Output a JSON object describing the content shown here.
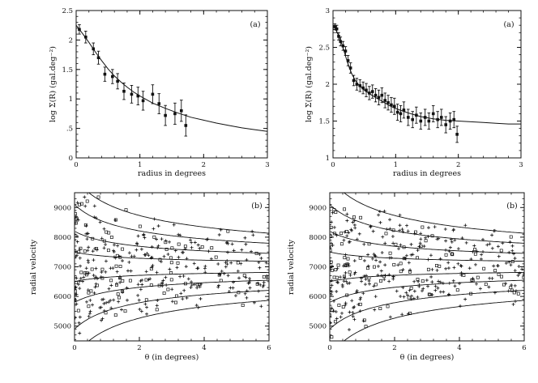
{
  "chart_data": [
    {
      "id": "top-left",
      "type": "scatter",
      "panel_label": "(a)",
      "xlabel": "radius in degrees",
      "ylabel": "log Σ(R) (gal.deg⁻²)",
      "xlim": [
        0,
        3
      ],
      "ylim": [
        0,
        2.5
      ],
      "xticks": [
        0,
        1,
        2,
        3
      ],
      "xtick_labels": [
        "0",
        "1",
        "2",
        "3"
      ],
      "yticks": [
        0,
        0.5,
        1,
        1.5,
        2,
        2.5
      ],
      "ytick_labels": [
        "0",
        ".5",
        "1",
        "1.5",
        "2",
        "2.5"
      ],
      "points": [
        {
          "x": 0.05,
          "y": 2.18,
          "err": 0.08
        },
        {
          "x": 0.15,
          "y": 2.05,
          "err": 0.1
        },
        {
          "x": 0.27,
          "y": 1.85,
          "err": 0.1
        },
        {
          "x": 0.35,
          "y": 1.7,
          "err": 0.11
        },
        {
          "x": 0.45,
          "y": 1.42,
          "err": 0.12
        },
        {
          "x": 0.57,
          "y": 1.38,
          "err": 0.12
        },
        {
          "x": 0.65,
          "y": 1.3,
          "err": 0.13
        },
        {
          "x": 0.75,
          "y": 1.13,
          "err": 0.14
        },
        {
          "x": 0.87,
          "y": 1.08,
          "err": 0.15
        },
        {
          "x": 0.97,
          "y": 1.05,
          "err": 0.15
        },
        {
          "x": 1.05,
          "y": 0.97,
          "err": 0.16
        },
        {
          "x": 1.2,
          "y": 1.08,
          "err": 0.16
        },
        {
          "x": 1.3,
          "y": 0.92,
          "err": 0.17
        },
        {
          "x": 1.4,
          "y": 0.72,
          "err": 0.17
        },
        {
          "x": 1.55,
          "y": 0.75,
          "err": 0.18
        },
        {
          "x": 1.65,
          "y": 0.8,
          "err": 0.18
        },
        {
          "x": 1.72,
          "y": 0.55,
          "err": 0.18
        }
      ],
      "fit_curve": {
        "x": [
          0.0,
          0.1,
          0.2,
          0.3,
          0.4,
          0.5,
          0.6,
          0.7,
          0.8,
          0.9,
          1.0,
          1.2,
          1.4,
          1.6,
          1.8,
          2.0,
          2.2,
          2.4,
          2.6,
          2.8,
          3.0
        ],
        "y": [
          2.25,
          2.11,
          1.96,
          1.8,
          1.65,
          1.51,
          1.39,
          1.29,
          1.2,
          1.12,
          1.05,
          0.93,
          0.84,
          0.76,
          0.69,
          0.64,
          0.59,
          0.55,
          0.51,
          0.48,
          0.45
        ]
      }
    },
    {
      "id": "top-right",
      "type": "scatter",
      "panel_label": "(a)",
      "xlabel": "radius in degrees",
      "ylabel": "log Σ(R) (gal.deg⁻²)",
      "xlim": [
        0,
        3
      ],
      "ylim": [
        1,
        3
      ],
      "xticks": [
        0,
        1,
        2,
        3
      ],
      "xtick_labels": [
        "0",
        "1",
        "2",
        "3"
      ],
      "yticks": [
        1,
        1.5,
        2,
        2.5,
        3
      ],
      "ytick_labels": [
        "1",
        "1.5",
        "2",
        "2.5",
        "3"
      ],
      "points": [
        {
          "x": 0.03,
          "y": 2.78,
          "err": 0.04
        },
        {
          "x": 0.06,
          "y": 2.75,
          "err": 0.05
        },
        {
          "x": 0.09,
          "y": 2.65,
          "err": 0.05
        },
        {
          "x": 0.12,
          "y": 2.58,
          "err": 0.06
        },
        {
          "x": 0.16,
          "y": 2.52,
          "err": 0.06
        },
        {
          "x": 0.2,
          "y": 2.45,
          "err": 0.06
        },
        {
          "x": 0.24,
          "y": 2.32,
          "err": 0.07
        },
        {
          "x": 0.28,
          "y": 2.22,
          "err": 0.07
        },
        {
          "x": 0.33,
          "y": 2.05,
          "err": 0.07
        },
        {
          "x": 0.38,
          "y": 2.0,
          "err": 0.08
        },
        {
          "x": 0.43,
          "y": 1.98,
          "err": 0.08
        },
        {
          "x": 0.48,
          "y": 1.95,
          "err": 0.08
        },
        {
          "x": 0.53,
          "y": 1.92,
          "err": 0.09
        },
        {
          "x": 0.58,
          "y": 1.88,
          "err": 0.09
        },
        {
          "x": 0.63,
          "y": 1.9,
          "err": 0.09
        },
        {
          "x": 0.68,
          "y": 1.85,
          "err": 0.09
        },
        {
          "x": 0.73,
          "y": 1.82,
          "err": 0.1
        },
        {
          "x": 0.78,
          "y": 1.85,
          "err": 0.1
        },
        {
          "x": 0.83,
          "y": 1.78,
          "err": 0.1
        },
        {
          "x": 0.88,
          "y": 1.75,
          "err": 0.1
        },
        {
          "x": 0.93,
          "y": 1.72,
          "err": 0.1
        },
        {
          "x": 0.98,
          "y": 1.7,
          "err": 0.11
        },
        {
          "x": 1.03,
          "y": 1.62,
          "err": 0.11
        },
        {
          "x": 1.08,
          "y": 1.6,
          "err": 0.11
        },
        {
          "x": 1.13,
          "y": 1.65,
          "err": 0.11
        },
        {
          "x": 1.2,
          "y": 1.55,
          "err": 0.11
        },
        {
          "x": 1.27,
          "y": 1.52,
          "err": 0.11
        },
        {
          "x": 1.33,
          "y": 1.58,
          "err": 0.11
        },
        {
          "x": 1.4,
          "y": 1.5,
          "err": 0.11
        },
        {
          "x": 1.47,
          "y": 1.55,
          "err": 0.11
        },
        {
          "x": 1.53,
          "y": 1.5,
          "err": 0.11
        },
        {
          "x": 1.6,
          "y": 1.6,
          "err": 0.11
        },
        {
          "x": 1.67,
          "y": 1.52,
          "err": 0.11
        },
        {
          "x": 1.73,
          "y": 1.55,
          "err": 0.11
        },
        {
          "x": 1.8,
          "y": 1.45,
          "err": 0.11
        },
        {
          "x": 1.87,
          "y": 1.5,
          "err": 0.11
        },
        {
          "x": 1.93,
          "y": 1.52,
          "err": 0.11
        },
        {
          "x": 1.98,
          "y": 1.32,
          "err": 0.11
        }
      ],
      "fit_curve": {
        "x": [
          0.0,
          0.05,
          0.1,
          0.15,
          0.2,
          0.25,
          0.3,
          0.35,
          0.4,
          0.5,
          0.6,
          0.7,
          0.8,
          0.9,
          1.0,
          1.2,
          1.4,
          1.6,
          1.8,
          2.0,
          2.2,
          2.4,
          2.6,
          2.8,
          3.0
        ],
        "y": [
          2.75,
          2.73,
          2.64,
          2.52,
          2.38,
          2.25,
          2.14,
          2.06,
          2.0,
          1.92,
          1.86,
          1.81,
          1.76,
          1.71,
          1.67,
          1.61,
          1.56,
          1.53,
          1.51,
          1.5,
          1.49,
          1.48,
          1.47,
          1.46,
          1.46
        ]
      }
    },
    {
      "id": "bottom-left",
      "type": "scatter",
      "panel_label": "(b)",
      "xlabel": "θ (in degrees)",
      "ylabel": "radial velocity",
      "xlim": [
        0,
        6
      ],
      "ylim": [
        4500,
        9500
      ],
      "xticks": [
        0,
        2,
        4,
        6
      ],
      "xtick_labels": [
        "0",
        "2",
        "4",
        "6"
      ],
      "yticks": [
        5000,
        6000,
        7000,
        8000,
        9000
      ],
      "ytick_labels": [
        "5000",
        "6000",
        "7000",
        "8000",
        "9000"
      ],
      "caustic_center": 7000,
      "caustic_amplitudes": [
        3000,
        2100,
        1200,
        500
      ],
      "caustic_scale_deg": 1.0,
      "scatter_seed": 7,
      "scatter_count": 380
    },
    {
      "id": "bottom-right",
      "type": "scatter",
      "panel_label": "(b)",
      "xlabel": "θ (in degrees)",
      "ylabel": "radial velocity",
      "xlim": [
        0,
        6
      ],
      "ylim": [
        4500,
        9500
      ],
      "xticks": [
        0,
        2,
        4,
        6
      ],
      "xtick_labels": [
        "0",
        "2",
        "4",
        "6"
      ],
      "yticks": [
        5000,
        6000,
        7000,
        8000,
        9000
      ],
      "ytick_labels": [
        "5000",
        "6000",
        "7000",
        "8000",
        "9000"
      ],
      "caustic_center": 7000,
      "caustic_amplitudes": [
        3000,
        2100,
        1200,
        500
      ],
      "caustic_scale_deg": 1.0,
      "scatter_seed": 13,
      "scatter_count": 380
    }
  ]
}
